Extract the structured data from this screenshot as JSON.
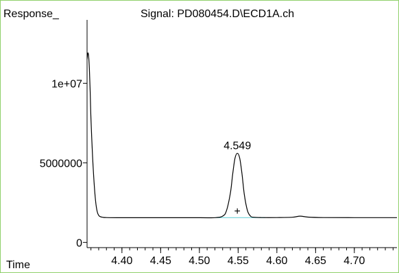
{
  "chart_data": {
    "type": "line",
    "title": "Signal: PD080454.D\\ECD1A.ch",
    "ylabel": "Response_",
    "xlabel": "Time",
    "xlim": [
      4.355,
      4.755
    ],
    "ylim": [
      -200000,
      14500000
    ],
    "x_ticks": {
      "major": [
        4.4,
        4.45,
        4.5,
        4.55,
        4.6,
        4.65,
        4.7
      ],
      "labels": [
        "4.40",
        "4.45",
        "4.50",
        "4.55",
        "4.60",
        "4.65",
        "4.70"
      ],
      "minor_step": 0.01
    },
    "y_ticks": {
      "values": [
        0,
        5000000,
        10000000
      ],
      "labels": [
        "0",
        "5000000",
        "1e+07"
      ]
    },
    "series": [
      {
        "color": "#000000",
        "x": [
          4.355,
          4.356,
          4.357,
          4.358,
          4.359,
          4.36,
          4.362,
          4.364,
          4.366,
          4.368,
          4.37,
          4.372,
          4.375,
          4.38,
          4.4,
          4.45,
          4.5,
          4.52,
          4.53,
          4.535,
          4.54,
          4.543,
          4.546,
          4.549,
          4.552,
          4.555,
          4.558,
          4.562,
          4.566,
          4.57,
          4.58,
          4.6,
          4.62,
          4.63,
          4.64,
          4.66,
          4.7,
          4.755
        ],
        "y": [
          11500000,
          11900000,
          11700000,
          10900000,
          9500000,
          7800000,
          5500000,
          3800000,
          2600000,
          1950000,
          1700000,
          1620000,
          1580000,
          1560000,
          1550000,
          1550000,
          1550000,
          1555000,
          1650000,
          2000000,
          3100000,
          4300000,
          5300000,
          5600000,
          5300000,
          4300000,
          3000000,
          2000000,
          1650000,
          1580000,
          1560000,
          1560000,
          1580000,
          1650000,
          1590000,
          1560000,
          1555000,
          1555000
        ]
      }
    ],
    "baseline": {
      "color": "#6fd3d8",
      "x": [
        4.521,
        4.585
      ],
      "y": [
        1555000,
        1555000
      ]
    },
    "annotations": [
      {
        "text": "4.549",
        "x": 4.549,
        "y": 5600000
      },
      {
        "text": "+",
        "x": 4.549,
        "y": 2000000
      }
    ]
  }
}
